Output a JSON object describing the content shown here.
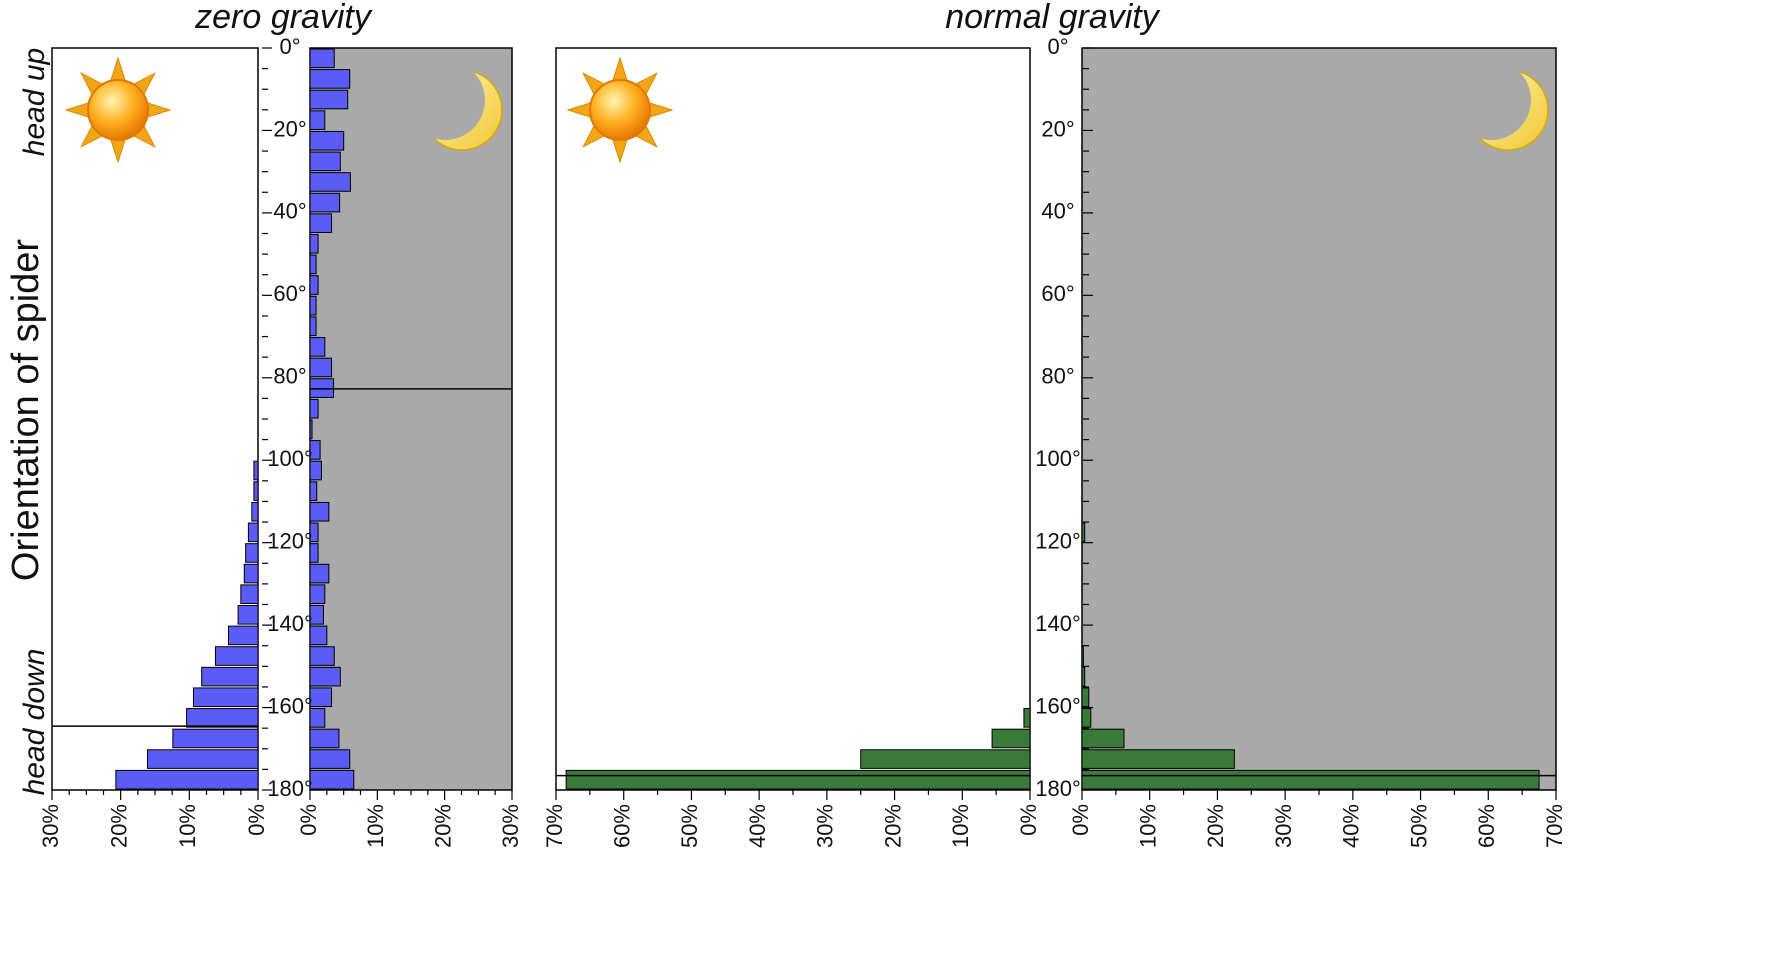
{
  "figure": {
    "ylabel": "Orientation of spider",
    "side_labels": {
      "top": "head up",
      "bottom": "head down"
    },
    "angle_ticks": [
      "0°",
      "20°",
      "40°",
      "60°",
      "80°",
      "100°",
      "120°",
      "140°",
      "160°",
      "180°"
    ],
    "icons": {
      "day": "sun-icon",
      "night": "moon-icon"
    },
    "colors": {
      "night_background": "#a9a9a9",
      "zero_gravity_bars": "#5b5bf5",
      "normal_gravity_bars": "#3a7a3a",
      "bar_edge": "#000000"
    }
  },
  "chart_data": [
    {
      "type": "bar",
      "orientation": "horizontal",
      "group_title": "zero gravity",
      "condition": "day",
      "x_direction": "right-to-left",
      "xlim": [
        0,
        30
      ],
      "x_ticks": [
        "30%",
        "20%",
        "10%",
        "0%"
      ],
      "x_tick_values": [
        30,
        20,
        10,
        0
      ],
      "ylim": [
        0,
        180
      ],
      "bin_width": 5,
      "bins": [
        100,
        105,
        110,
        115,
        120,
        125,
        130,
        135,
        140,
        145,
        150,
        155,
        160,
        165,
        170,
        175
      ],
      "values": [
        0.6,
        0.6,
        0.9,
        1.4,
        1.8,
        2.0,
        2.5,
        2.9,
        4.3,
        6.2,
        8.2,
        9.4,
        10.4,
        12.4,
        16.1,
        20.7
      ],
      "mean_angle": 164.5
    },
    {
      "type": "bar",
      "orientation": "horizontal",
      "group_title": "zero gravity",
      "condition": "night",
      "x_direction": "left-to-right",
      "xlim": [
        0,
        30
      ],
      "x_ticks": [
        "0%",
        "10%",
        "20%",
        "30%"
      ],
      "x_tick_values": [
        0,
        10,
        20,
        30
      ],
      "ylim": [
        0,
        180
      ],
      "bin_width": 5,
      "bins": [
        0,
        5,
        10,
        15,
        20,
        25,
        30,
        35,
        40,
        45,
        50,
        55,
        60,
        65,
        70,
        75,
        80,
        85,
        90,
        95,
        100,
        105,
        110,
        115,
        120,
        125,
        130,
        135,
        140,
        145,
        150,
        155,
        160,
        165,
        170,
        175
      ],
      "values": [
        3.6,
        5.9,
        5.6,
        2.2,
        5.0,
        4.5,
        6.0,
        4.4,
        3.2,
        1.2,
        0.9,
        1.2,
        0.9,
        0.9,
        2.2,
        3.2,
        3.5,
        1.2,
        0.3,
        1.5,
        1.7,
        1.0,
        2.8,
        1.2,
        1.2,
        2.8,
        2.2,
        2.0,
        2.5,
        3.6,
        4.5,
        3.2,
        2.2,
        4.3,
        5.9,
        6.5
      ],
      "mean_angle": 82.7
    },
    {
      "type": "bar",
      "orientation": "horizontal",
      "group_title": "normal gravity",
      "condition": "day",
      "x_direction": "right-to-left",
      "xlim": [
        0,
        70
      ],
      "x_ticks": [
        "70%",
        "60%",
        "50%",
        "40%",
        "30%",
        "20%",
        "10%",
        "0%"
      ],
      "x_tick_values": [
        70,
        60,
        50,
        40,
        30,
        20,
        10,
        0
      ],
      "ylim": [
        0,
        180
      ],
      "bin_width": 5,
      "bins": [
        160,
        165,
        170,
        175
      ],
      "values": [
        0.9,
        5.6,
        25.0,
        68.5
      ],
      "mean_angle": 176.5
    },
    {
      "type": "bar",
      "orientation": "horizontal",
      "group_title": "normal gravity",
      "condition": "night",
      "x_direction": "left-to-right",
      "xlim": [
        0,
        70
      ],
      "x_ticks": [
        "0%",
        "10%",
        "20%",
        "30%",
        "40%",
        "50%",
        "60%",
        "70%"
      ],
      "x_tick_values": [
        0,
        10,
        20,
        30,
        40,
        50,
        60,
        70
      ],
      "ylim": [
        0,
        180
      ],
      "bin_width": 5,
      "bins": [
        115,
        145,
        150,
        155,
        160,
        165,
        170,
        175
      ],
      "values": [
        0.4,
        0.2,
        0.4,
        1.0,
        1.3,
        6.2,
        22.5,
        67.5
      ],
      "mean_angle": 176.5
    }
  ]
}
